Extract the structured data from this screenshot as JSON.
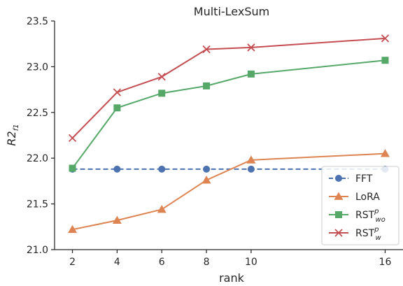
{
  "chart_data": {
    "type": "line",
    "title": "Multi-LexSum",
    "xlabel": "rank",
    "ylabel_main": "R2",
    "ylabel_sub": "f1",
    "x": [
      2,
      4,
      6,
      8,
      10,
      16
    ],
    "xlim": [
      1.2,
      16.8
    ],
    "ylim": [
      21.0,
      23.5
    ],
    "yticks": [
      "21.0",
      "21.5",
      "22.0",
      "22.5",
      "23.0",
      "23.5"
    ],
    "xticks": [
      "2",
      "4",
      "6",
      "8",
      "10",
      "16"
    ],
    "grid": false,
    "legend_position": "bottom-right",
    "series": [
      {
        "name": "FFT",
        "values": [
          21.88,
          21.88,
          21.88,
          21.88,
          21.88,
          21.88
        ],
        "color": "#4c72b0",
        "marker": "circle",
        "dash": true
      },
      {
        "name": "LoRA",
        "values": [
          21.22,
          21.32,
          21.44,
          21.76,
          21.98,
          22.05
        ],
        "color": "#dd8452",
        "marker": "triangle",
        "dash": false
      },
      {
        "name": "RST",
        "sup": "p",
        "sub": "wo",
        "values": [
          21.89,
          22.55,
          22.71,
          22.79,
          22.92,
          23.07
        ],
        "color": "#55a868",
        "marker": "square",
        "dash": false
      },
      {
        "name": "RST",
        "sup": "p",
        "sub": "w",
        "values": [
          22.22,
          22.72,
          22.89,
          23.19,
          23.21,
          23.31
        ],
        "color": "#c44e52",
        "marker": "x",
        "dash": false
      }
    ]
  }
}
